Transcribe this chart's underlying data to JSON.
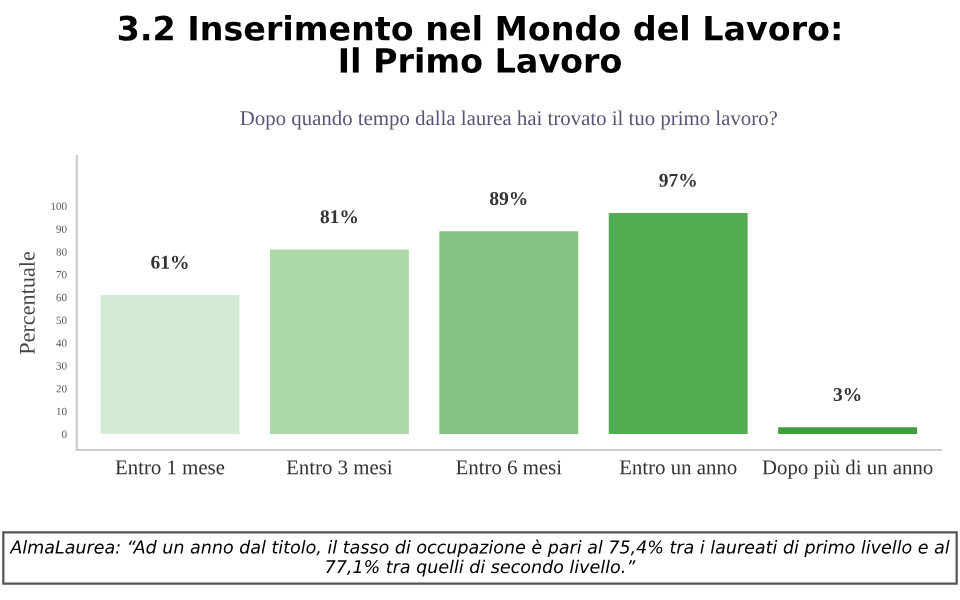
{
  "chart_data": {
    "type": "bar",
    "title": "3.2 Inserimento nel Mondo del Lavoro:\nIl Primo Lavoro",
    "subtitle": "Dopo quando tempo dalla laurea hai trovato il tuo primo lavoro?",
    "ylabel": "Percentuale",
    "categories": [
      "Entro 1 mese",
      "Entro 3 mesi",
      "Entro 6 mesi",
      "Entro un anno",
      "Dopo più di un anno"
    ],
    "values": [
      61,
      81,
      89,
      97,
      3
    ],
    "colors": [
      "#d3ead3",
      "#acd8a8",
      "#86c383",
      "#52ad52",
      "#3f9f3f"
    ],
    "value_labels": [
      "61%",
      "81%",
      "89%",
      "97%",
      "3%"
    ],
    "ylim": [
      -7,
      122
    ],
    "yticks": [
      0,
      10,
      20,
      30,
      40,
      50,
      60,
      70,
      80,
      90,
      100
    ],
    "grid": false,
    "annotations": [
      "AlmaLaurea: “Ad un anno dal titolo, il tasso di occupazione è pari al 75,4% tra i laureati di primo livello e al 77,1% tra quelli di secondo livello.”"
    ]
  }
}
